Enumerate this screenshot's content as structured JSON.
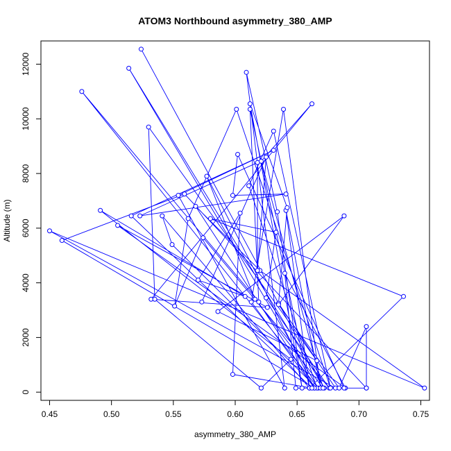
{
  "chart_data": {
    "type": "line",
    "title": "ATOM3 Northbound asymmetry_380_AMP",
    "xlabel": "asymmetry_380_AMP",
    "ylabel": "Altitude (m)",
    "xlim": [
      0.443,
      0.757
    ],
    "ylim": [
      -300,
      12850
    ],
    "xticks": [
      0.45,
      0.5,
      0.55,
      0.6,
      0.65,
      0.7,
      0.75
    ],
    "xtick_labels": [
      "0.45",
      "0.50",
      "0.55",
      "0.60",
      "0.65",
      "0.70",
      "0.75"
    ],
    "yticks": [
      0,
      2000,
      4000,
      6000,
      8000,
      10000,
      12000
    ],
    "ytick_labels": [
      "0",
      "2000",
      "4000",
      "6000",
      "8000",
      "10000",
      "12000"
    ],
    "grid": false,
    "series": [
      {
        "color": "#0000ff",
        "marker": "open-circle",
        "x": [
          0.524,
          0.672,
          0.514,
          0.667,
          0.476,
          0.619,
          0.612,
          0.66,
          0.736,
          0.58,
          0.633,
          0.625,
          0.676,
          0.574,
          0.551,
          0.562,
          0.601,
          0.677,
          0.631,
          0.611,
          0.666,
          0.549,
          0.541,
          0.66,
          0.641,
          0.669,
          0.639,
          0.613,
          0.664,
          0.577,
          0.616,
          0.671,
          0.621,
          0.662,
          0.532,
          0.626,
          0.505,
          0.689,
          0.64,
          0.649,
          0.706,
          0.559,
          0.46,
          0.664,
          0.568,
          0.62,
          0.753,
          0.45,
          0.681,
          0.635,
          0.642,
          0.612,
          0.654,
          0.634,
          0.609,
          0.64,
          0.554,
          0.631,
          0.516,
          0.662,
          0.598,
          0.604,
          0.57,
          0.608,
          0.491,
          0.645,
          0.621,
          0.535,
          0.53,
          0.666,
          0.586,
          0.688,
          0.635,
          0.684,
          0.706,
          0.706,
          0.688,
          0.602,
          0.598,
          0.641,
          0.523,
          0.618,
          0.618,
          0.625,
          0.573
        ],
        "y": [
          12550,
          150,
          11850,
          150,
          11000,
          3300,
          10350,
          150,
          3500,
          6350,
          5850,
          3450,
          150,
          5650,
          3150,
          6350,
          10350,
          150,
          9550,
          7550,
          150,
          5400,
          6450,
          150,
          6650,
          150,
          10350,
          3300,
          150,
          7900,
          3400,
          150,
          8450,
          10550,
          3400,
          3100,
          6100,
          150,
          4350,
          150,
          150,
          7250,
          5550,
          150,
          6800,
          4450,
          150,
          5900,
          150,
          3250,
          6750,
          10550,
          150,
          6600,
          11700,
          150,
          7200,
          8850,
          6450,
          150,
          650,
          6550,
          4100,
          3500,
          6650,
          1200,
          150,
          3400,
          9700,
          1150,
          2950,
          6450,
          3200,
          150,
          2400,
          150,
          150,
          8700,
          7200,
          7250,
          6450,
          8400,
          4450,
          8600,
          3300
        ]
      }
    ]
  }
}
